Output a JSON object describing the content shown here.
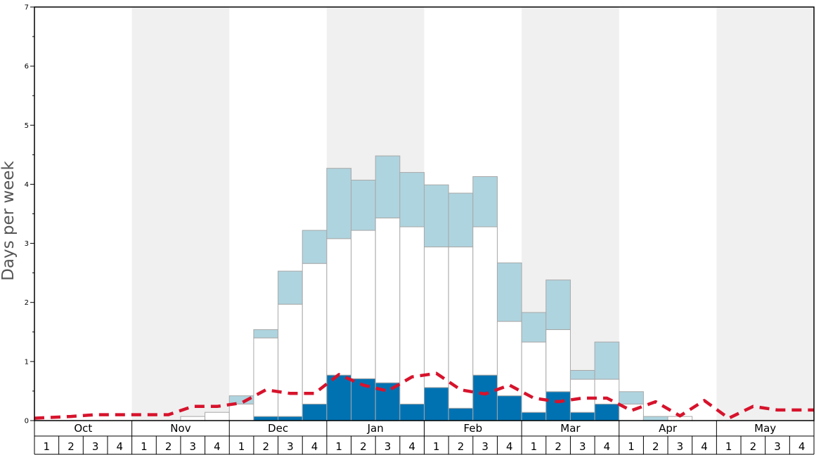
{
  "chart_data": {
    "type": "bar",
    "ylabel": "Days per week",
    "ylim": [
      0,
      7
    ],
    "y_ticks": [
      "0",
      "1",
      "2",
      "3",
      "4",
      "5",
      "6",
      "7"
    ],
    "months": [
      "Oct",
      "Nov",
      "Dec",
      "Jan",
      "Feb",
      "Mar",
      "Apr",
      "May"
    ],
    "week_labels": [
      "1",
      "2",
      "3",
      "4"
    ],
    "grid": false,
    "colors": {
      "dark_blue": "#0072b2",
      "white": "#ffffff",
      "light_blue": "#aed4df",
      "band_shade": "#f0f0f0",
      "line_red": "#d7132c",
      "bar_border": "#a8a8a8"
    },
    "series": [
      {
        "type": "stacked-bar-segment",
        "values": [
          0,
          0,
          0,
          0,
          0,
          0,
          0,
          0,
          0,
          0.07,
          0.07,
          0.28,
          0.77,
          0.71,
          0.64,
          0.28,
          0.56,
          0.21,
          0.77,
          0.42,
          0.14,
          0.49,
          0.14,
          0.28,
          0,
          0,
          0,
          0,
          0,
          0,
          0,
          0
        ]
      },
      {
        "type": "stacked-bar-segment",
        "values": [
          0,
          0,
          0,
          0,
          0,
          0,
          0.07,
          0.14,
          0.28,
          1.33,
          1.9,
          2.38,
          2.31,
          2.51,
          2.79,
          3.0,
          2.38,
          2.73,
          2.51,
          1.26,
          1.19,
          1.05,
          0.56,
          0.42,
          0.28,
          0,
          0.07,
          0,
          0,
          0,
          0,
          0
        ]
      },
      {
        "type": "stacked-bar-segment",
        "values": [
          0,
          0,
          0,
          0,
          0,
          0,
          0,
          0,
          0.14,
          0.14,
          0.56,
          0.56,
          1.19,
          0.85,
          1.05,
          0.92,
          1.05,
          0.91,
          0.85,
          0.99,
          0.5,
          0.84,
          0.15,
          0.63,
          0.21,
          0.07,
          0,
          0,
          0,
          0,
          0,
          0
        ]
      },
      {
        "type": "line",
        "values": [
          0.04,
          0.07,
          0.1,
          0.1,
          0.1,
          0.1,
          0.24,
          0.24,
          0.3,
          0.52,
          0.46,
          0.46,
          0.78,
          0.6,
          0.5,
          0.74,
          0.8,
          0.52,
          0.45,
          0.6,
          0.38,
          0.32,
          0.38,
          0.38,
          0.17,
          0.32,
          0.08,
          0.34,
          0.04,
          0.24,
          0.18,
          0.18
        ]
      }
    ]
  }
}
